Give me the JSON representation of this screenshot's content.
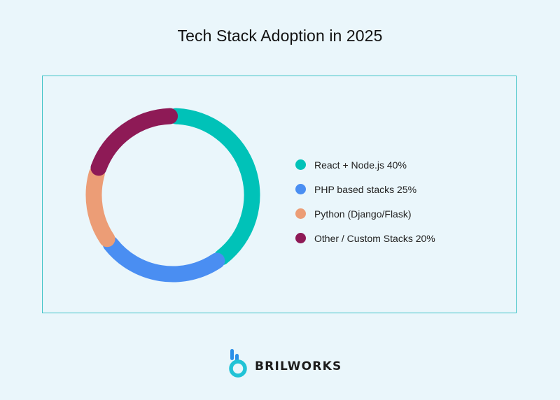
{
  "chart_data": {
    "type": "pie",
    "variant": "donut",
    "title": "Tech Stack Adoption in 2025",
    "categories": [
      "React + Node.js 40%",
      "PHP based stacks 25%",
      "Python (Django/Flask)",
      "Other / Custom Stacks 20%"
    ],
    "values": [
      40,
      25,
      15,
      20
    ],
    "colors": [
      "#00c2b8",
      "#4a8ef2",
      "#ec9d76",
      "#8e1a56"
    ],
    "legend_position": "right"
  },
  "brand": {
    "name": "BRILWORKS",
    "icon": "brilworks-logo-icon",
    "colors": [
      "#2a8fe8",
      "#21c3d6"
    ]
  }
}
